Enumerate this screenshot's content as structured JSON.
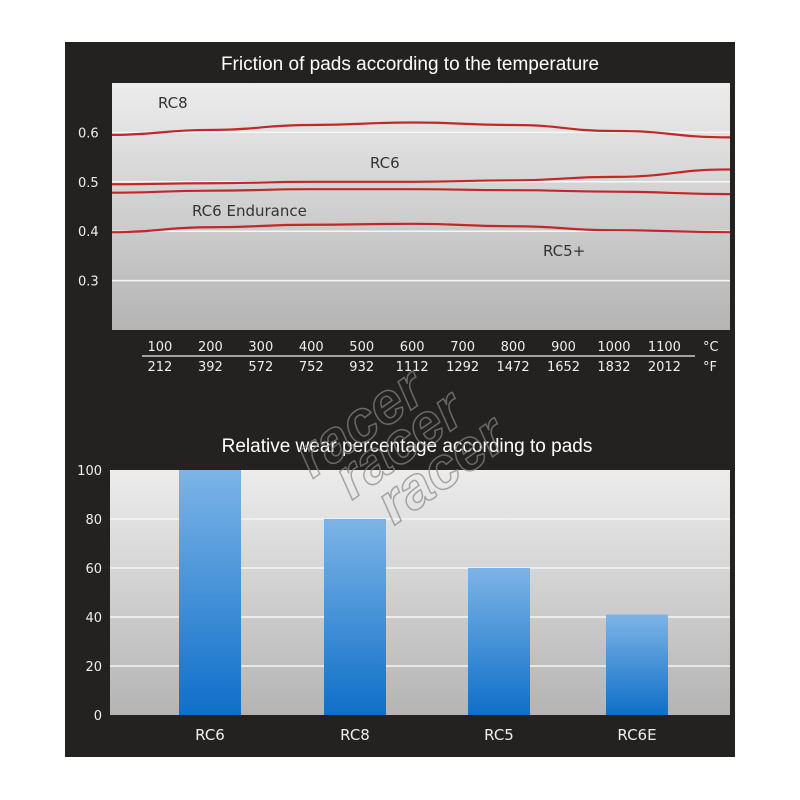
{
  "watermark": "racershop",
  "chart_data": [
    {
      "type": "line",
      "title": "Friction of pads according to the temperature",
      "xlabel_units": [
        "°C",
        "°F"
      ],
      "x_ticks_c": [
        "100",
        "200",
        "300",
        "400",
        "500",
        "600",
        "700",
        "800",
        "900",
        "1000",
        "1100"
      ],
      "x_ticks_f": [
        "212",
        "392",
        "572",
        "752",
        "932",
        "1112",
        "1292",
        "1472",
        "1652",
        "1832",
        "2012"
      ],
      "y_ticks": [
        "0.6",
        "0.5",
        "0.4",
        "0.3"
      ],
      "ylim": [
        0.2,
        0.7
      ],
      "xlim": [
        5,
        1230
      ],
      "grid": true,
      "series": [
        {
          "name": "RC8",
          "color": "#c0282a",
          "x": [
            5,
            200,
            400,
            600,
            800,
            1000,
            1230
          ],
          "y": [
            0.595,
            0.605,
            0.615,
            0.62,
            0.615,
            0.603,
            0.59
          ]
        },
        {
          "name": "RC6",
          "color": "#c0282a",
          "x": [
            5,
            200,
            400,
            600,
            800,
            1000,
            1230
          ],
          "y": [
            0.495,
            0.497,
            0.5,
            0.5,
            0.503,
            0.51,
            0.525
          ]
        },
        {
          "name": "RC6 Endurance",
          "color": "#c0282a",
          "x": [
            5,
            200,
            400,
            600,
            800,
            1000,
            1230
          ],
          "y": [
            0.478,
            0.482,
            0.485,
            0.485,
            0.483,
            0.48,
            0.475
          ]
        },
        {
          "name": "RC5+",
          "color": "#c0282a",
          "x": [
            5,
            200,
            400,
            600,
            800,
            1000,
            1230
          ],
          "y": [
            0.398,
            0.408,
            0.413,
            0.415,
            0.41,
            0.402,
            0.398
          ]
        }
      ]
    },
    {
      "type": "bar",
      "title": "Relative wear percentage according to pads",
      "categories": [
        "RC6",
        "RC8",
        "RC5",
        "RC6E"
      ],
      "values": [
        100,
        80,
        60,
        41
      ],
      "y_ticks": [
        "100",
        "80",
        "60",
        "40",
        "20",
        "0"
      ],
      "ylim": [
        0,
        100
      ],
      "grid": true,
      "bar_color": "#2a86d6"
    }
  ]
}
